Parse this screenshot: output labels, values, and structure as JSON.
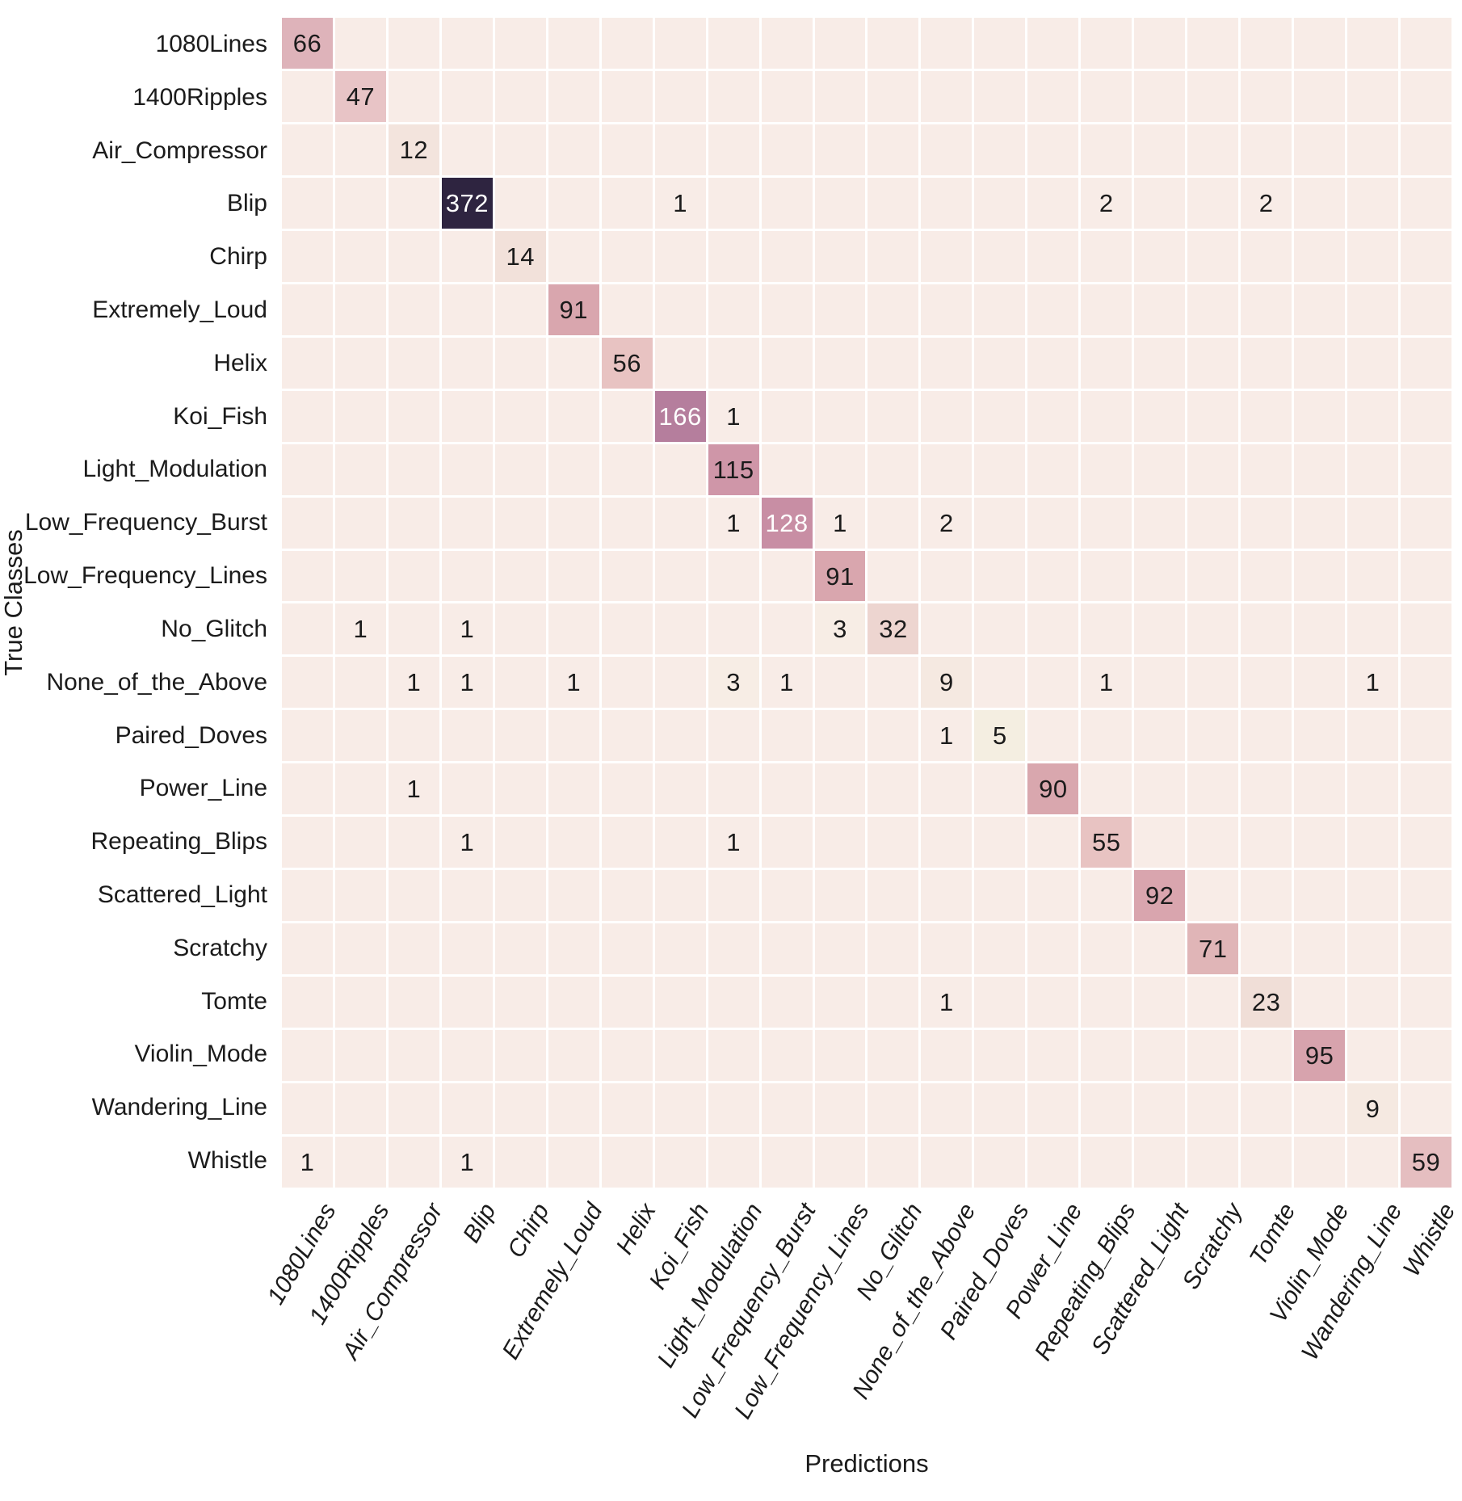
{
  "axes": {
    "x_title": "Predictions",
    "y_title": "True Classes"
  },
  "chart_data": {
    "type": "heatmap",
    "xlabel": "Predictions",
    "ylabel": "True Classes",
    "x_categories": [
      "1080Lines",
      "1400Ripples",
      "Air_Compressor",
      "Blip",
      "Chirp",
      "Extremely_Loud",
      "Helix",
      "Koi_Fish",
      "Light_Modulation",
      "Low_Frequency_Burst",
      "Low_Frequency_Lines",
      "No_Glitch",
      "None_of_the_Above",
      "Paired_Doves",
      "Power_Line",
      "Repeating_Blips",
      "Scattered_Light",
      "Scratchy",
      "Tomte",
      "Violin_Mode",
      "Wandering_Line",
      "Whistle"
    ],
    "y_categories": [
      "1080Lines",
      "1400Ripples",
      "Air_Compressor",
      "Blip",
      "Chirp",
      "Extremely_Loud",
      "Helix",
      "Koi_Fish",
      "Light_Modulation",
      "Low_Frequency_Burst",
      "Low_Frequency_Lines",
      "No_Glitch",
      "None_of_the_Above",
      "Paired_Doves",
      "Power_Line",
      "Repeating_Blips",
      "Scattered_Light",
      "Scratchy",
      "Tomte",
      "Violin_Mode",
      "Wandering_Line",
      "Whistle"
    ],
    "matrix": [
      [
        66,
        0,
        0,
        0,
        0,
        0,
        0,
        0,
        0,
        0,
        0,
        0,
        0,
        0,
        0,
        0,
        0,
        0,
        0,
        0,
        0,
        0
      ],
      [
        0,
        47,
        0,
        0,
        0,
        0,
        0,
        0,
        0,
        0,
        0,
        0,
        0,
        0,
        0,
        0,
        0,
        0,
        0,
        0,
        0,
        0
      ],
      [
        0,
        0,
        12,
        0,
        0,
        0,
        0,
        0,
        0,
        0,
        0,
        0,
        0,
        0,
        0,
        0,
        0,
        0,
        0,
        0,
        0,
        0
      ],
      [
        0,
        0,
        0,
        372,
        0,
        0,
        0,
        1,
        0,
        0,
        0,
        0,
        0,
        0,
        0,
        2,
        0,
        0,
        2,
        0,
        0,
        0
      ],
      [
        0,
        0,
        0,
        0,
        14,
        0,
        0,
        0,
        0,
        0,
        0,
        0,
        0,
        0,
        0,
        0,
        0,
        0,
        0,
        0,
        0,
        0
      ],
      [
        0,
        0,
        0,
        0,
        0,
        91,
        0,
        0,
        0,
        0,
        0,
        0,
        0,
        0,
        0,
        0,
        0,
        0,
        0,
        0,
        0,
        0
      ],
      [
        0,
        0,
        0,
        0,
        0,
        0,
        56,
        0,
        0,
        0,
        0,
        0,
        0,
        0,
        0,
        0,
        0,
        0,
        0,
        0,
        0,
        0
      ],
      [
        0,
        0,
        0,
        0,
        0,
        0,
        0,
        166,
        1,
        0,
        0,
        0,
        0,
        0,
        0,
        0,
        0,
        0,
        0,
        0,
        0,
        0
      ],
      [
        0,
        0,
        0,
        0,
        0,
        0,
        0,
        0,
        115,
        0,
        0,
        0,
        0,
        0,
        0,
        0,
        0,
        0,
        0,
        0,
        0,
        0
      ],
      [
        0,
        0,
        0,
        0,
        0,
        0,
        0,
        0,
        1,
        128,
        1,
        0,
        2,
        0,
        0,
        0,
        0,
        0,
        0,
        0,
        0,
        0
      ],
      [
        0,
        0,
        0,
        0,
        0,
        0,
        0,
        0,
        0,
        0,
        91,
        0,
        0,
        0,
        0,
        0,
        0,
        0,
        0,
        0,
        0,
        0
      ],
      [
        0,
        1,
        0,
        1,
        0,
        0,
        0,
        0,
        0,
        0,
        3,
        32,
        0,
        0,
        0,
        0,
        0,
        0,
        0,
        0,
        0,
        0
      ],
      [
        0,
        0,
        1,
        1,
        0,
        1,
        0,
        0,
        3,
        1,
        0,
        0,
        9,
        0,
        0,
        1,
        0,
        0,
        0,
        0,
        1,
        0
      ],
      [
        0,
        0,
        0,
        0,
        0,
        0,
        0,
        0,
        0,
        0,
        0,
        0,
        1,
        5,
        0,
        0,
        0,
        0,
        0,
        0,
        0,
        0
      ],
      [
        0,
        0,
        1,
        0,
        0,
        0,
        0,
        0,
        0,
        0,
        0,
        0,
        0,
        0,
        90,
        0,
        0,
        0,
        0,
        0,
        0,
        0
      ],
      [
        0,
        0,
        0,
        1,
        0,
        0,
        0,
        0,
        1,
        0,
        0,
        0,
        0,
        0,
        0,
        55,
        0,
        0,
        0,
        0,
        0,
        0
      ],
      [
        0,
        0,
        0,
        0,
        0,
        0,
        0,
        0,
        0,
        0,
        0,
        0,
        0,
        0,
        0,
        0,
        92,
        0,
        0,
        0,
        0,
        0
      ],
      [
        0,
        0,
        0,
        0,
        0,
        0,
        0,
        0,
        0,
        0,
        0,
        0,
        0,
        0,
        0,
        0,
        0,
        71,
        0,
        0,
        0,
        0
      ],
      [
        0,
        0,
        0,
        0,
        0,
        0,
        0,
        0,
        0,
        0,
        0,
        0,
        1,
        0,
        0,
        0,
        0,
        0,
        23,
        0,
        0,
        0
      ],
      [
        0,
        0,
        0,
        0,
        0,
        0,
        0,
        0,
        0,
        0,
        0,
        0,
        0,
        0,
        0,
        0,
        0,
        0,
        0,
        95,
        0,
        0
      ],
      [
        0,
        0,
        0,
        0,
        0,
        0,
        0,
        0,
        0,
        0,
        0,
        0,
        0,
        0,
        0,
        0,
        0,
        0,
        0,
        0,
        9,
        0
      ],
      [
        1,
        0,
        0,
        1,
        0,
        0,
        0,
        0,
        0,
        0,
        0,
        0,
        0,
        0,
        0,
        0,
        0,
        0,
        0,
        0,
        0,
        59
      ]
    ],
    "value_range": [
      0,
      372
    ],
    "grid_on": true,
    "legend_position": "none",
    "colors": {
      "grid_line": "#ffffff",
      "zero_cell": "#f8ece7",
      "max_cell": "#2e2440",
      "dark_text": "#1b1b1b",
      "light_text": "#ffffff",
      "light_text_min_value": 120,
      "colormap_anchors": [
        [
          0,
          "#f8ece7"
        ],
        [
          2,
          "#f8ece7"
        ],
        [
          5,
          "#f4eee1"
        ],
        [
          9,
          "#f5e9e1"
        ],
        [
          14,
          "#f2e1da"
        ],
        [
          23,
          "#f0ded7"
        ],
        [
          32,
          "#edd5d0"
        ],
        [
          47,
          "#e8c4c6"
        ],
        [
          56,
          "#e8c3c2"
        ],
        [
          66,
          "#deb3ba"
        ],
        [
          71,
          "#e0b5b7"
        ],
        [
          91,
          "#d9a6ae"
        ],
        [
          95,
          "#d7a3ad"
        ],
        [
          115,
          "#cf96a8"
        ],
        [
          128,
          "#c88ea4"
        ],
        [
          166,
          "#b57e9d"
        ],
        [
          372,
          "#2e2440"
        ]
      ]
    }
  }
}
